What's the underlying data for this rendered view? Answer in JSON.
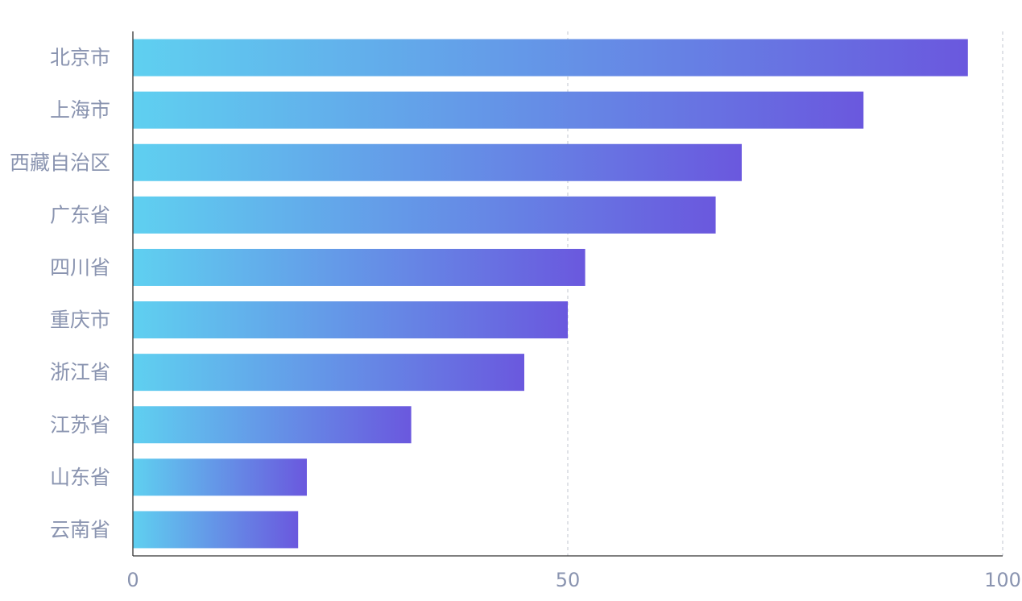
{
  "chart_data": {
    "type": "bar",
    "orientation": "horizontal",
    "title": "",
    "xlabel": "",
    "ylabel": "",
    "categories": [
      "北京市",
      "上海市",
      "西藏自治区",
      "广东省",
      "四川省",
      "重庆市",
      "浙江省",
      "江苏省",
      "山东省",
      "云南省"
    ],
    "values": [
      96,
      84,
      70,
      67,
      52,
      50,
      45,
      32,
      20,
      19
    ],
    "xlim": [
      0,
      100
    ],
    "x_ticks": [
      "0",
      "50",
      "100"
    ],
    "grid": "vertical-dashed",
    "legend": "none",
    "colors": {
      "gradient_start": "#5fd0f0",
      "gradient_end": "#6a58de",
      "label": "#8a94b0",
      "grid": "#cfd3da",
      "axis": "#333333"
    }
  }
}
